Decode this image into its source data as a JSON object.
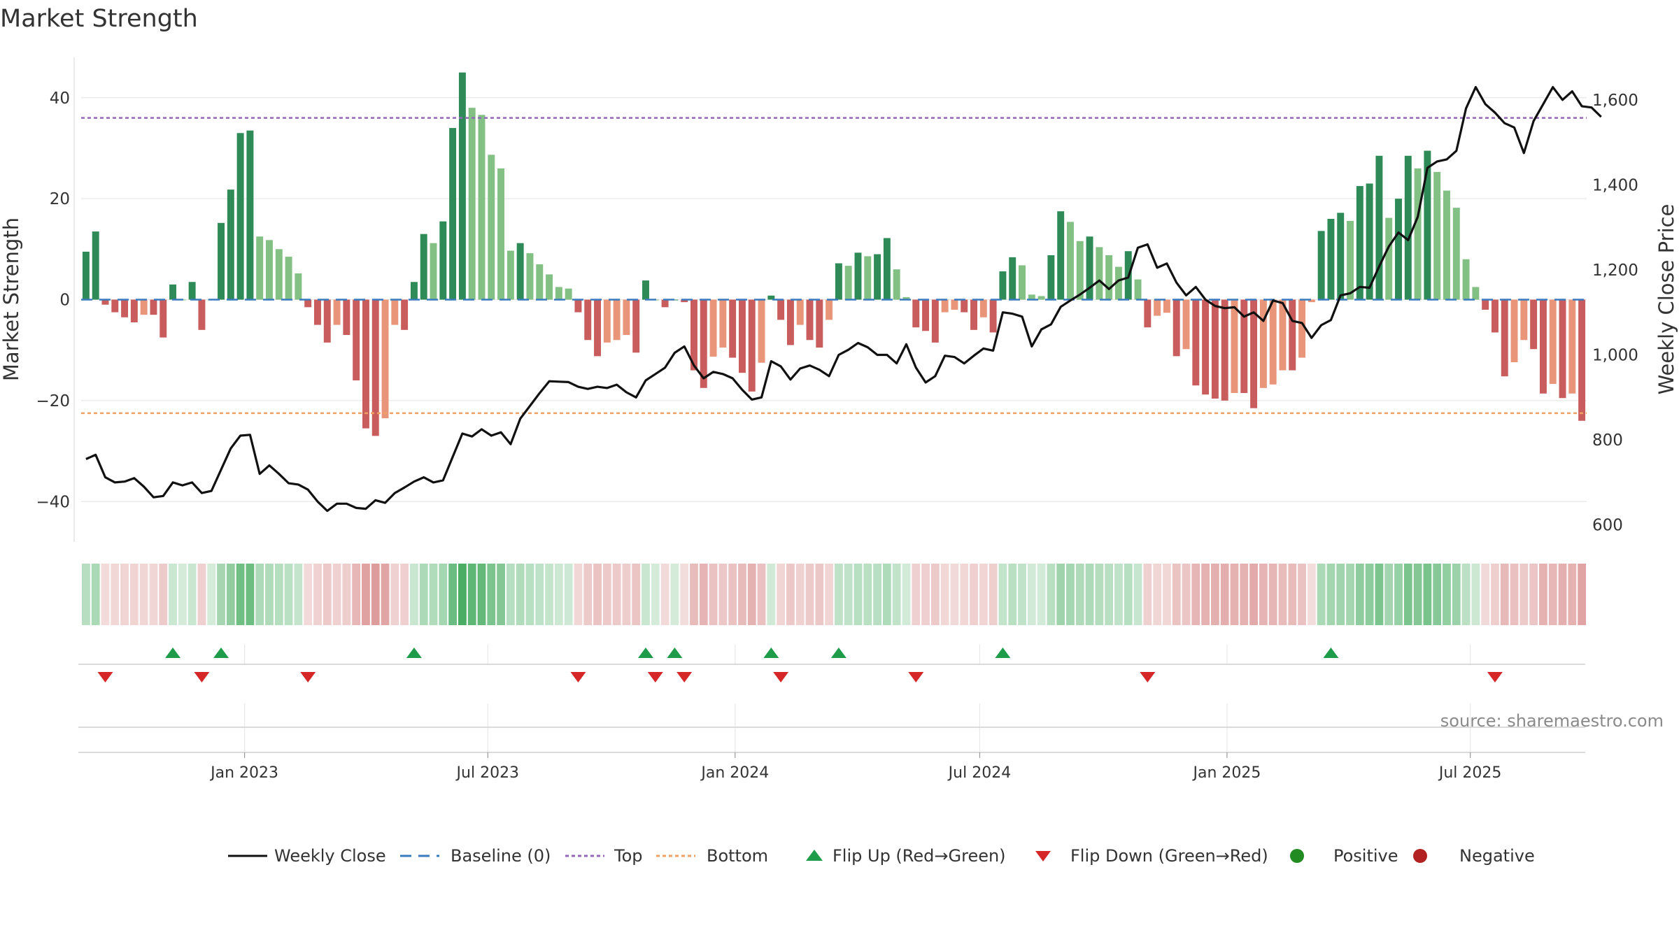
{
  "chart_data": {
    "type": "bar",
    "title": "Market Strength",
    "ylabel": "Market Strength",
    "y2label": "Weekly Close Price",
    "ylim": [
      -48,
      48
    ],
    "y2lim": [
      560,
      1700
    ],
    "yticks": [
      40,
      20,
      0,
      -20,
      -40
    ],
    "ytick_labels": [
      "40",
      "20",
      "0",
      "−20",
      "−40"
    ],
    "y2ticks": [
      600,
      800,
      1000,
      1200,
      1400,
      1600
    ],
    "y2tick_labels": [
      "600",
      "800",
      "1,000",
      "1,200",
      "1,400",
      "1,600"
    ],
    "x_start": "2022-09-05",
    "x_end": "2025-09-22",
    "x_tick_labels": [
      "Jan 2023",
      "Jul 2023",
      "Jan 2024",
      "Jul 2024",
      "Jan 2025",
      "Jul 2025"
    ],
    "x_tick_dates": [
      "2023-01-01",
      "2023-07-01",
      "2024-01-01",
      "2024-07-01",
      "2025-01-01",
      "2025-07-01"
    ],
    "top_threshold": 36,
    "bottom_threshold": -22.5,
    "baseline": 0,
    "grid": true,
    "legend_position": "bottom",
    "strength": [
      9.5,
      13.5,
      -1,
      -2.5,
      -3.5,
      -4.5,
      -3,
      -3,
      -7.5,
      3,
      0,
      3.5,
      -6,
      0,
      15.2,
      21.8,
      33,
      33.5,
      12.5,
      11.8,
      10,
      8.5,
      5.2,
      -1.5,
      -5,
      -8.5,
      -5,
      -7,
      -16,
      -25.5,
      -27,
      -23.5,
      -5,
      -6,
      3.5,
      13,
      11.2,
      15.5,
      34,
      45,
      38,
      36.6,
      28.7,
      26,
      9.7,
      11.2,
      9.2,
      7,
      5,
      2.5,
      2.2,
      -2.5,
      -8,
      -11.2,
      -8.5,
      -8,
      -7,
      -10.5,
      3.8,
      0,
      -1.5,
      0,
      -0.5,
      -14,
      -17.5,
      -11.3,
      -9.5,
      -11.5,
      -14.5,
      -18.2,
      -12.5,
      0.8,
      -4,
      -9,
      -5,
      -8,
      -9.5,
      -4,
      7.2,
      6.7,
      9.3,
      8.6,
      9,
      12.2,
      6,
      0.5,
      -5.5,
      -6.2,
      -8.5,
      -2.5,
      -2,
      -2.5,
      -6,
      -3.5,
      -6.5,
      5.6,
      8.4,
      6.8,
      1,
      0.7,
      8.8,
      17.5,
      15.4,
      11.6,
      12.5,
      10.4,
      8.8,
      6.5,
      9.6,
      4,
      -5.5,
      -3.2,
      -2.6,
      -11.2,
      -9.8,
      -17,
      -18.8,
      -19.6,
      -20,
      -18.5,
      -18.5,
      -21.5,
      -17.5,
      -16.8,
      -14,
      -14,
      -11.5,
      -0.5,
      13.6,
      16,
      17.2,
      15.6,
      22.5,
      23,
      28.5,
      16.2,
      20,
      28.5,
      26,
      29.5,
      25.3,
      21.6,
      18.2,
      8,
      2.5,
      -2,
      -6.5,
      -15.2,
      -12.4,
      -8,
      -9.8,
      -18.6,
      -16.7,
      -19.5,
      -18.6,
      -24
    ],
    "close": [
      755,
      765,
      712,
      700,
      702,
      710,
      690,
      665,
      668,
      700,
      693,
      700,
      675,
      680,
      730,
      780,
      810,
      812,
      720,
      740,
      720,
      698,
      695,
      683,
      655,
      633,
      650,
      650,
      640,
      638,
      658,
      652,
      675,
      688,
      702,
      712,
      700,
      705,
      760,
      815,
      808,
      825,
      810,
      818,
      790,
      850,
      880,
      910,
      938,
      937,
      936,
      925,
      920,
      925,
      922,
      930,
      912,
      900,
      940,
      955,
      970,
      1005,
      1020,
      975,
      945,
      960,
      955,
      945,
      918,
      895,
      900,
      985,
      973,
      942,
      968,
      975,
      965,
      950,
      1000,
      1012,
      1028,
      1018,
      1000,
      1000,
      980,
      1025,
      970,
      935,
      950,
      998,
      995,
      980,
      998,
      1015,
      1010,
      1100,
      1097,
      1090,
      1020,
      1060,
      1072,
      1113,
      1128,
      1142,
      1158,
      1175,
      1155,
      1175,
      1182,
      1252,
      1260,
      1205,
      1215,
      1170,
      1140,
      1160,
      1130,
      1115,
      1110,
      1112,
      1090,
      1100,
      1080,
      1128,
      1122,
      1080,
      1075,
      1040,
      1070,
      1082,
      1140,
      1145,
      1160,
      1158,
      1208,
      1255,
      1288,
      1270,
      1325,
      1440,
      1455,
      1460,
      1480,
      1580,
      1630,
      1590,
      1570,
      1545,
      1535,
      1475,
      1550,
      1590,
      1630,
      1600,
      1620,
      1585,
      1582,
      1560
    ],
    "flip_up_positions": [
      9,
      14,
      34,
      58,
      61,
      71,
      78,
      95,
      129
    ],
    "flip_down_positions": [
      2,
      12,
      23,
      51,
      59,
      62,
      72,
      86,
      110,
      146
    ],
    "source_label": "source: sharemaestro.com",
    "legend": [
      {
        "key": "close",
        "label": "Weekly Close"
      },
      {
        "key": "baseline",
        "label": "Baseline (0)"
      },
      {
        "key": "top",
        "label": "Top"
      },
      {
        "key": "bottom",
        "label": "Bottom"
      },
      {
        "key": "flipup",
        "label": "Flip Up (Red→Green)"
      },
      {
        "key": "flipdown",
        "label": "Flip Down (Green→Red)"
      },
      {
        "key": "positive",
        "label": "Positive"
      },
      {
        "key": "negative",
        "label": "Negative"
      }
    ],
    "colors": {
      "pos_strong": "#2e8b57",
      "pos_weak": "#82c083",
      "neg_strong": "#c95c5c",
      "neg_weak": "#e8957a",
      "close_line": "#111111",
      "baseline": "#3a7bbf",
      "top": "#9467bd",
      "bottom": "#f0a060",
      "flip_up": "#1f9c4a",
      "flip_down": "#d62728",
      "positive": "#228b22",
      "negative": "#b22222",
      "grid": "#e8e8e8"
    }
  }
}
